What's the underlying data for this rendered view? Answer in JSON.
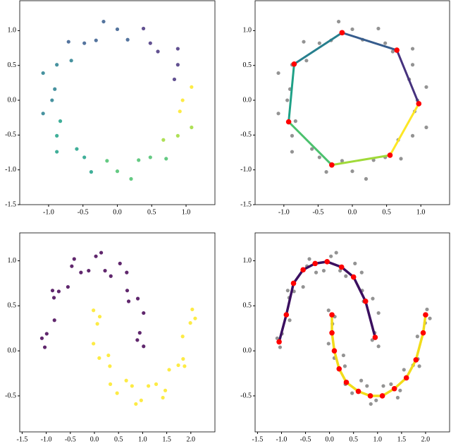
{
  "chart_data": [
    {
      "type": "scatter",
      "xlim": [
        -1.42,
        1.42
      ],
      "ylim": [
        -1.5,
        1.43
      ],
      "xticks": [
        {
          "value": -1.0,
          "label": "-1.0"
        },
        -0.5,
        {
          "value": 0,
          "label": "0.0"
        },
        0.5,
        {
          "value": 1.0,
          "label": "1.0"
        }
      ],
      "yticks": [
        {
          "value": 1.0,
          "label": "1.0"
        },
        0.5,
        {
          "value": 0,
          "label": "0.0"
        },
        -0.5,
        {
          "value": -1.0,
          "label": "-1.0"
        },
        -1.5
      ],
      "series": [
        {
          "style": "points",
          "color": "#fde725",
          "x": [
            0.95,
            1.08,
            0.91
          ],
          "y": [
            0,
            0.19,
            -0.16
          ]
        },
        {
          "style": "points",
          "color": "#46327e",
          "x": [
            0.83,
            0.88,
            0.88,
            0.59,
            0.48,
            0.38
          ],
          "y": [
            0.3,
            0.51,
            0.74,
            0.7,
            0.82,
            1.03
          ]
        },
        {
          "style": "points",
          "color": "#365c8d",
          "x": [
            0.15,
            0,
            -0.2,
            -0.31,
            -0.48,
            -0.71
          ],
          "y": [
            0.87,
            1.02,
            1.13,
            0.86,
            0.82,
            0.84
          ]
        },
        {
          "style": "points",
          "color": "#277f8e",
          "x": [
            -0.67,
            -0.88,
            -1.08,
            -0.91,
            -0.95,
            -1.08
          ],
          "y": [
            0.57,
            0.51,
            0.39,
            0.16,
            0,
            -0.19
          ]
        },
        {
          "style": "points",
          "color": "#1fa187",
          "x": [
            -0.83,
            -0.88,
            -0.88,
            -0.59,
            -0.48,
            -0.38
          ],
          "y": [
            -0.3,
            -0.51,
            -0.74,
            -0.7,
            -0.82,
            -1.03
          ]
        },
        {
          "style": "points",
          "color": "#4ac16d",
          "x": [
            -0.15,
            0,
            0.2,
            0.31,
            0.48,
            0.71
          ],
          "y": [
            -0.87,
            -1.02,
            -1.13,
            -0.86,
            -0.82,
            -0.84
          ]
        },
        {
          "style": "points",
          "color": "#a0da39",
          "x": [
            0.67,
            0.88,
            1.08
          ],
          "y": [
            -0.57,
            -0.51,
            -0.39
          ]
        }
      ]
    },
    {
      "type": "scatter",
      "xlim": [
        -1.42,
        1.42
      ],
      "ylim": [
        -1.5,
        1.43
      ],
      "xticks": [
        {
          "value": -1.0,
          "label": "-1.0"
        },
        -0.5,
        {
          "value": 0,
          "label": "0.0"
        },
        0.5,
        {
          "value": 1.0,
          "label": "1.0"
        }
      ],
      "yticks": [
        {
          "value": 1.0,
          "label": "1.0"
        },
        0.5,
        {
          "value": 0,
          "label": "0.0"
        },
        -0.5,
        {
          "value": -1.0,
          "label": "-1.0"
        },
        -1.5
      ],
      "series": [
        {
          "style": "points",
          "color": "#808080",
          "x": [
            0.95,
            1.08,
            0.83,
            0.88,
            0.88,
            0.59,
            0.48,
            0.38,
            0.15,
            0,
            -0.2,
            -0.31,
            -0.48,
            -0.71,
            -0.67,
            -0.88,
            -1.08,
            -0.91,
            -0.95,
            -1.08,
            -0.83,
            -0.88,
            -0.88,
            -0.59,
            -0.48,
            -0.38,
            -0.15,
            0,
            0.2,
            0.31,
            0.48,
            0.71,
            0.67,
            0.88,
            1.08,
            0.91
          ],
          "y": [
            0,
            0.19,
            0.3,
            0.51,
            0.74,
            0.7,
            0.82,
            1.03,
            0.87,
            1.02,
            1.13,
            0.86,
            0.82,
            0.84,
            0.57,
            0.51,
            0.39,
            0.16,
            0,
            -0.19,
            -0.3,
            -0.51,
            -0.74,
            -0.7,
            -0.82,
            -1.03,
            -0.87,
            -1.02,
            -1.13,
            -0.86,
            -0.82,
            -0.84,
            -0.57,
            -0.51,
            -0.39,
            -0.16
          ]
        },
        {
          "style": "line",
          "marker_color": "#ff0000",
          "segment_colors": [
            "#365c8d",
            "#46327e",
            "#fde725",
            "#a0da39",
            "#4ac16d",
            "#1fa187",
            "#277f8e"
          ],
          "x": [
            -0.15,
            0.65,
            0.97,
            0.55,
            -0.3,
            -0.93,
            -0.85,
            -0.15
          ],
          "y": [
            0.97,
            0.72,
            -0.05,
            -0.79,
            -0.93,
            -0.31,
            0.52,
            0.97
          ]
        }
      ]
    },
    {
      "type": "scatter",
      "xlim": [
        -1.55,
        2.5
      ],
      "ylim": [
        -0.9,
        1.31
      ],
      "xticks": [
        -1.5,
        {
          "value": -1.0,
          "label": "-1.0"
        },
        -0.5,
        {
          "value": 0,
          "label": "0.0"
        },
        0.5,
        {
          "value": 1.0,
          "label": "1.0"
        },
        1.5,
        {
          "value": 2.0,
          "label": "2.0"
        }
      ],
      "yticks": [
        {
          "value": 1.0,
          "label": "1.0"
        },
        0.5,
        {
          "value": 0,
          "label": "0.0"
        },
        -0.5
      ],
      "series": [
        {
          "style": "points",
          "color": "#440154",
          "x": [
            1.02,
            0.94,
            0.9,
            0.68,
            0.53,
            0.22,
            0.03,
            -0.28,
            -0.47,
            -0.74,
            -0.84,
            -0.99,
            -1.03,
            0.89,
            1.02,
            0.71,
            0.67,
            0.34,
            0.14,
            -0.12,
            -0.42,
            -0.55,
            -0.87,
            -0.83,
            -1.09
          ],
          "y": [
            0.05,
            0.2,
            0.58,
            0.67,
            0.97,
            0.89,
            1.05,
            0.87,
            0.94,
            0.66,
            0.59,
            0.19,
            0.04,
            0.12,
            0.42,
            0.55,
            0.87,
            0.83,
            1.09,
            0.89,
            1.02,
            0.71,
            0.67,
            0.34,
            0.14
          ]
        },
        {
          "style": "points",
          "color": "#fde725",
          "x": [
            -0.02,
            0.06,
            0.1,
            0.32,
            0.47,
            0.78,
            0.97,
            1.28,
            1.47,
            1.74,
            1.84,
            1.99,
            2.03,
            0.11,
            -0.02,
            0.29,
            0.33,
            0.66,
            0.86,
            1.12,
            1.42,
            1.55,
            1.87,
            1.83,
            2.09
          ],
          "y": [
            0.45,
            0.3,
            -0.08,
            -0.17,
            -0.47,
            -0.39,
            -0.55,
            -0.37,
            -0.44,
            -0.16,
            -0.09,
            0.31,
            0.46,
            0.38,
            0.08,
            -0.05,
            -0.37,
            -0.33,
            -0.59,
            -0.39,
            -0.52,
            -0.21,
            -0.17,
            0.16,
            0.36
          ]
        }
      ]
    },
    {
      "type": "scatter",
      "xlim": [
        -1.55,
        2.5
      ],
      "ylim": [
        -0.9,
        1.31
      ],
      "xticks": [
        -1.5,
        {
          "value": -1.0,
          "label": "-1.0"
        },
        -0.5,
        {
          "value": 0,
          "label": "0.0"
        },
        0.5,
        {
          "value": 1.0,
          "label": "1.0"
        },
        1.5,
        {
          "value": 2.0,
          "label": "2.0"
        }
      ],
      "yticks": [
        {
          "value": 1.0,
          "label": "1.0"
        },
        0.5,
        {
          "value": 0,
          "label": "0.0"
        },
        -0.5
      ],
      "series": [
        {
          "style": "points",
          "color": "#808080",
          "x": [
            1.02,
            0.94,
            0.9,
            0.68,
            0.53,
            0.22,
            0.03,
            -0.28,
            -0.47,
            -0.74,
            -0.84,
            -0.99,
            -1.03,
            0.89,
            1.02,
            0.71,
            0.67,
            0.34,
            0.14,
            -0.12,
            -0.42,
            -0.55,
            -0.87,
            -0.83,
            -1.09,
            -0.02,
            0.06,
            0.1,
            0.32,
            0.47,
            0.78,
            0.97,
            1.28,
            1.47,
            1.74,
            1.84,
            1.99,
            2.03,
            0.11,
            -0.02,
            0.29,
            0.33,
            0.66,
            0.86,
            1.12,
            1.42,
            1.55,
            1.87,
            1.83,
            2.09
          ],
          "y": [
            0.05,
            0.2,
            0.58,
            0.67,
            0.97,
            0.89,
            1.05,
            0.87,
            0.94,
            0.66,
            0.59,
            0.19,
            0.04,
            0.12,
            0.42,
            0.55,
            0.87,
            0.83,
            1.09,
            0.89,
            1.02,
            0.71,
            0.67,
            0.34,
            0.14,
            0.45,
            0.3,
            -0.08,
            -0.17,
            -0.47,
            -0.39,
            -0.55,
            -0.37,
            -0.44,
            -0.16,
            -0.09,
            0.31,
            0.46,
            0.38,
            0.08,
            -0.05,
            -0.37,
            -0.33,
            -0.59,
            -0.39,
            -0.52,
            -0.21,
            -0.17,
            0.16,
            0.36
          ]
        },
        {
          "style": "line",
          "color": "#3b0f5f",
          "marker_color": "#ff0000",
          "x": [
            -1.05,
            -0.9,
            -0.75,
            -0.55,
            -0.3,
            -0.05,
            0.25,
            0.5,
            0.75,
            0.95
          ],
          "y": [
            0.1,
            0.4,
            0.75,
            0.9,
            0.97,
            0.99,
            0.93,
            0.82,
            0.55,
            0.15
          ]
        },
        {
          "style": "line",
          "color": "#f2dc1a",
          "marker_color": "#ff0000",
          "x": [
            0.05,
            0.05,
            0.1,
            0.2,
            0.35,
            0.6,
            0.85,
            1.1,
            1.35,
            1.6,
            1.8,
            1.95,
            2.0
          ],
          "y": [
            0.4,
            0.2,
            0.0,
            -0.2,
            -0.35,
            -0.45,
            -0.5,
            -0.5,
            -0.42,
            -0.3,
            -0.1,
            0.2,
            0.4
          ]
        }
      ]
    }
  ]
}
